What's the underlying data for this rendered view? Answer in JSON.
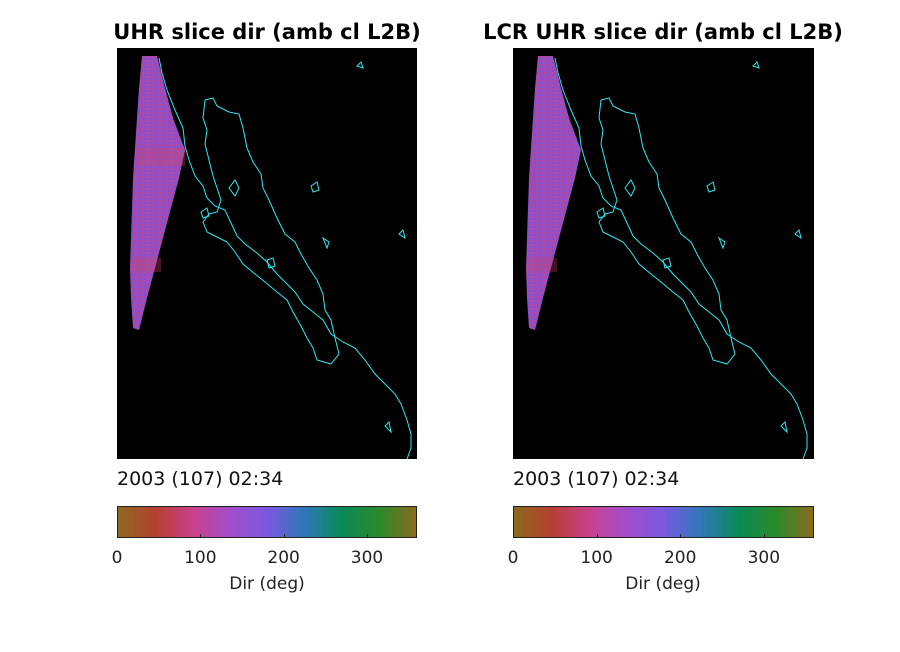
{
  "chart_data": [
    {
      "type": "heatmap",
      "title": "UHR slice dir (amb cl L2B)",
      "timestamp": "2003 (107) 02:34",
      "colorbar": {
        "label": "Dir (deg)",
        "range": [
          0,
          360
        ],
        "ticks": [
          "0",
          "100",
          "200",
          "300"
        ],
        "tick_values": [
          0,
          100,
          200,
          300
        ],
        "colormap": [
          "#8b6a1f",
          "#b5402f",
          "#c8418a",
          "#a24ec9",
          "#7a58e0",
          "#2f78b8",
          "#0a8a58",
          "#2a8a2a",
          "#8b6a1f"
        ]
      },
      "map_background": "#000000",
      "coastline_color": "#30e8f0",
      "swath_dominant_color": "#a050d0"
    },
    {
      "type": "heatmap",
      "title": "LCR UHR slice dir (amb cl L2B)",
      "timestamp": "2003 (107) 02:34",
      "colorbar": {
        "label": "Dir (deg)",
        "range": [
          0,
          360
        ],
        "ticks": [
          "0",
          "100",
          "200",
          "300"
        ],
        "tick_values": [
          0,
          100,
          200,
          300
        ],
        "colormap": [
          "#8b6a1f",
          "#b5402f",
          "#c8418a",
          "#a24ec9",
          "#7a58e0",
          "#2f78b8",
          "#0a8a58",
          "#2a8a2a",
          "#8b6a1f"
        ]
      },
      "map_background": "#000000",
      "coastline_color": "#30e8f0",
      "swath_dominant_color": "#a050d0"
    }
  ]
}
